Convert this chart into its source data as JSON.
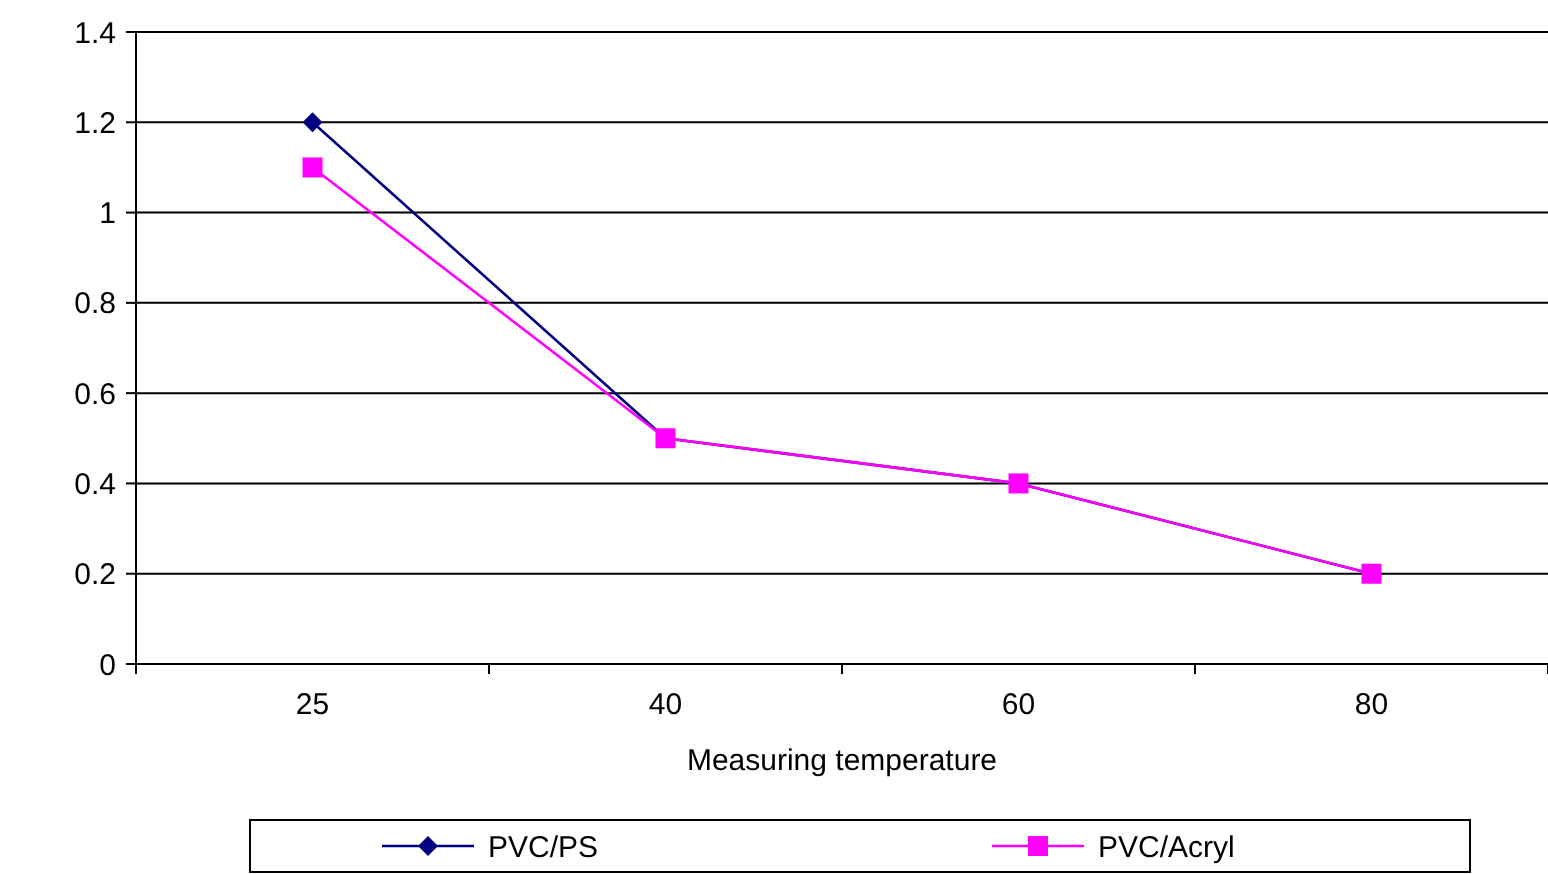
{
  "chart_data": {
    "type": "line",
    "xlabel": "Measuring temperature",
    "categories": [
      "25",
      "40",
      "60",
      "80"
    ],
    "series": [
      {
        "name": "PVC/PS",
        "color": "#000080",
        "values": [
          1.2,
          0.5,
          0.4,
          0.2
        ],
        "marker": "diamond"
      },
      {
        "name": "PVC/Acryl",
        "color": "#ff00ff",
        "values": [
          1.1,
          0.5,
          0.4,
          0.2
        ],
        "marker": "square"
      }
    ],
    "ylim": [
      0,
      1.4
    ],
    "yticks": [
      0,
      0.2,
      0.4,
      0.6,
      0.8,
      1,
      1.2,
      1.4
    ],
    "grid": "y",
    "legend": "bottom",
    "line_style": "solid"
  }
}
